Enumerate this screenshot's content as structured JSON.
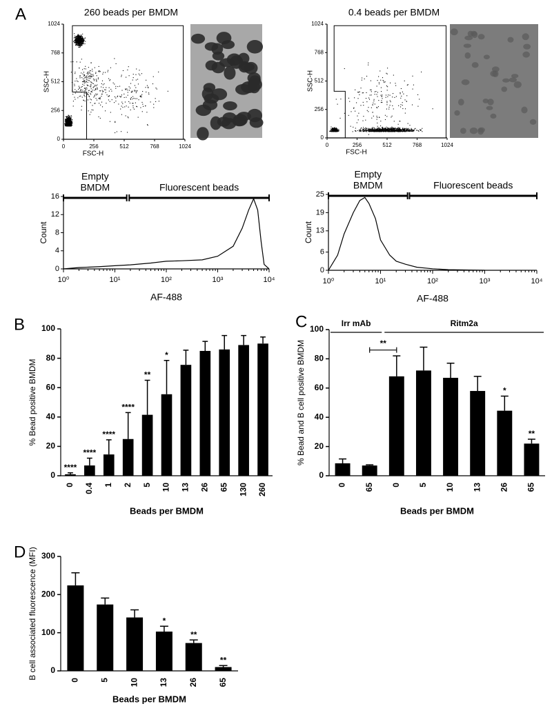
{
  "chart_data": [
    {
      "type": "scatter",
      "panel": "A",
      "title": "260 beads per BMDM",
      "xlabel": "FSC-H",
      "ylabel": "SSC-H",
      "xlim": [
        0,
        1024
      ],
      "ylim": [
        0,
        1024
      ],
      "xticks": [
        0,
        256,
        512,
        768,
        1024
      ],
      "yticks": [
        0,
        256,
        512,
        768,
        1024
      ]
    },
    {
      "type": "scatter",
      "title": "0.4 beads per BMDM",
      "xlabel": "FSC-H",
      "ylabel": "SSC-H",
      "xlim": [
        0,
        1024
      ],
      "ylim": [
        0,
        1024
      ],
      "xticks": [
        0,
        256,
        512,
        768,
        1024
      ],
      "yticks": [
        0,
        256,
        512,
        768,
        1024
      ]
    },
    {
      "type": "line",
      "xlabel": "AF-488",
      "ylabel": "Count",
      "xlog": true,
      "color": "#000000",
      "xlim": [
        1,
        10000
      ],
      "ylim": [
        0,
        16
      ],
      "xticks": [
        {
          "value": 1,
          "label": "10⁰"
        },
        {
          "value": 10,
          "label": "10¹"
        },
        {
          "value": 100,
          "label": "10²"
        },
        {
          "value": 1000,
          "label": "10³"
        },
        {
          "value": 10000,
          "label": "10⁴"
        }
      ],
      "yticks": [
        0,
        4,
        8,
        12,
        16
      ],
      "x": [
        1,
        2,
        5,
        10,
        20,
        50,
        100,
        200,
        500,
        1000,
        2000,
        3000,
        4000,
        5000,
        6000,
        7000,
        8000,
        10000
      ],
      "values": [
        0,
        0.3,
        0.5,
        0.7,
        0.9,
        1.3,
        1.7,
        1.8,
        2.0,
        2.8,
        5,
        9,
        13,
        15.5,
        13,
        6,
        1,
        0
      ],
      "gates": [
        {
          "lines": [
            "Empty",
            "BMDM"
          ],
          "range": [
            1,
            17
          ]
        },
        {
          "lines": [
            "Fluorescent beads"
          ],
          "range": [
            19,
            10000
          ]
        }
      ]
    },
    {
      "type": "line",
      "xlabel": "AF-488",
      "ylabel": "Count",
      "xlog": true,
      "color": "#000000",
      "xlim": [
        1,
        10000
      ],
      "ylim": [
        0,
        25
      ],
      "xticks": [
        {
          "value": 1,
          "label": "10⁰"
        },
        {
          "value": 10,
          "label": "10¹"
        },
        {
          "value": 100,
          "label": "10²"
        },
        {
          "value": 1000,
          "label": "10³"
        },
        {
          "value": 10000,
          "label": "10⁴"
        }
      ],
      "yticks": [
        0,
        6,
        13,
        19,
        25
      ],
      "x": [
        1,
        1.5,
        2,
        3,
        4,
        5,
        6,
        8,
        10,
        15,
        20,
        30,
        50,
        100,
        200,
        1000
      ],
      "values": [
        0,
        5,
        12,
        19,
        23,
        24,
        22,
        17,
        10,
        5,
        3,
        2,
        1,
        0.5,
        0.2,
        0
      ],
      "gates": [
        {
          "lines": [
            "Empty",
            "BMDM"
          ],
          "range": [
            1,
            33
          ]
        },
        {
          "lines": [
            "Fluorescent beads"
          ],
          "range": [
            36,
            10000
          ]
        }
      ]
    },
    {
      "type": "bar",
      "panel": "B",
      "xlabel": "Beads per BMDM",
      "ylabel": "% Bead positive BMDM",
      "color": "#000000",
      "categories": [
        "0",
        "0.4",
        "1",
        "2",
        "5",
        "10",
        "13",
        "26",
        "65",
        "130",
        "260"
      ],
      "values": [
        1,
        7,
        14.5,
        25,
        41.5,
        55.5,
        75.5,
        85,
        86,
        89,
        90
      ],
      "errors": [
        1,
        5,
        10,
        18,
        23.5,
        23,
        10,
        6.5,
        9.5,
        6.5,
        4.5
      ],
      "significance": [
        "****",
        "****",
        "****",
        "****",
        "**",
        "*",
        null,
        null,
        null,
        null,
        null
      ],
      "ylim": [
        0,
        100
      ],
      "yticks": [
        0,
        20,
        40,
        60,
        80,
        100
      ]
    },
    {
      "type": "bar",
      "panel": "C",
      "xlabel": "Beads per BMDM",
      "ylabel": "% Bead and B cell positive BMDM",
      "color": "#000000",
      "categories": [
        "0",
        "65",
        "0",
        "5",
        "10",
        "13",
        "26",
        "65"
      ],
      "values": [
        8.5,
        7,
        68,
        72,
        67,
        58,
        44.5,
        22
      ],
      "errors": [
        3,
        0.5,
        14,
        16,
        10,
        10,
        10,
        3
      ],
      "significance": [
        null,
        null,
        null,
        null,
        null,
        null,
        "*",
        "**"
      ],
      "groups": [
        {
          "label": "Irr mAb"
        },
        {
          "label": "Ritm2a"
        }
      ],
      "comparison": {
        "label": "**",
        "level": 86
      },
      "ylim": [
        0,
        100
      ],
      "yticks": [
        0,
        20,
        40,
        60,
        80,
        100
      ]
    },
    {
      "type": "bar",
      "panel": "D",
      "xlabel": "Beads per BMDM",
      "ylabel": "B cell associated fluorescence (MFI)",
      "color": "#000000",
      "categories": [
        "0",
        "5",
        "10",
        "13",
        "26",
        "65"
      ],
      "values": [
        224,
        174,
        140,
        103,
        73,
        10
      ],
      "errors": [
        33,
        17,
        20,
        14,
        8,
        4
      ],
      "significance": [
        null,
        null,
        null,
        "*",
        "**",
        "**"
      ],
      "ylim": [
        0,
        300
      ],
      "yticks": [
        0,
        100,
        200,
        300
      ]
    }
  ]
}
